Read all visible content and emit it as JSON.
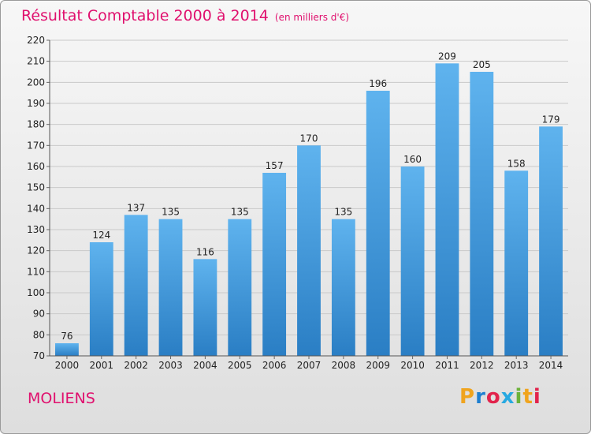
{
  "chart_data": {
    "type": "bar",
    "title": "Résultat Comptable 2000 à 2014",
    "subtitle": "(en milliers d'€)",
    "categories": [
      "2000",
      "2001",
      "2002",
      "2003",
      "2004",
      "2005",
      "2006",
      "2007",
      "2008",
      "2009",
      "2010",
      "2011",
      "2012",
      "2013",
      "2014"
    ],
    "values": [
      76,
      124,
      137,
      135,
      116,
      135,
      157,
      170,
      135,
      196,
      160,
      209,
      205,
      158,
      179
    ],
    "ylim": [
      70,
      220
    ],
    "yticks": [
      70,
      80,
      90,
      100,
      110,
      120,
      130,
      140,
      150,
      160,
      170,
      180,
      190,
      200,
      210,
      220
    ],
    "grid": true,
    "bar_color": "#3d94d8",
    "title_color": "#e0106e"
  },
  "footer": {
    "city": "MOLIENS",
    "logo": "Proxiti",
    "logo_colors": [
      "#f0a41e",
      "#1e7fd0",
      "#e2244c",
      "#27a9e1",
      "#6cb23a",
      "#f0a41e",
      "#e2244c"
    ]
  }
}
